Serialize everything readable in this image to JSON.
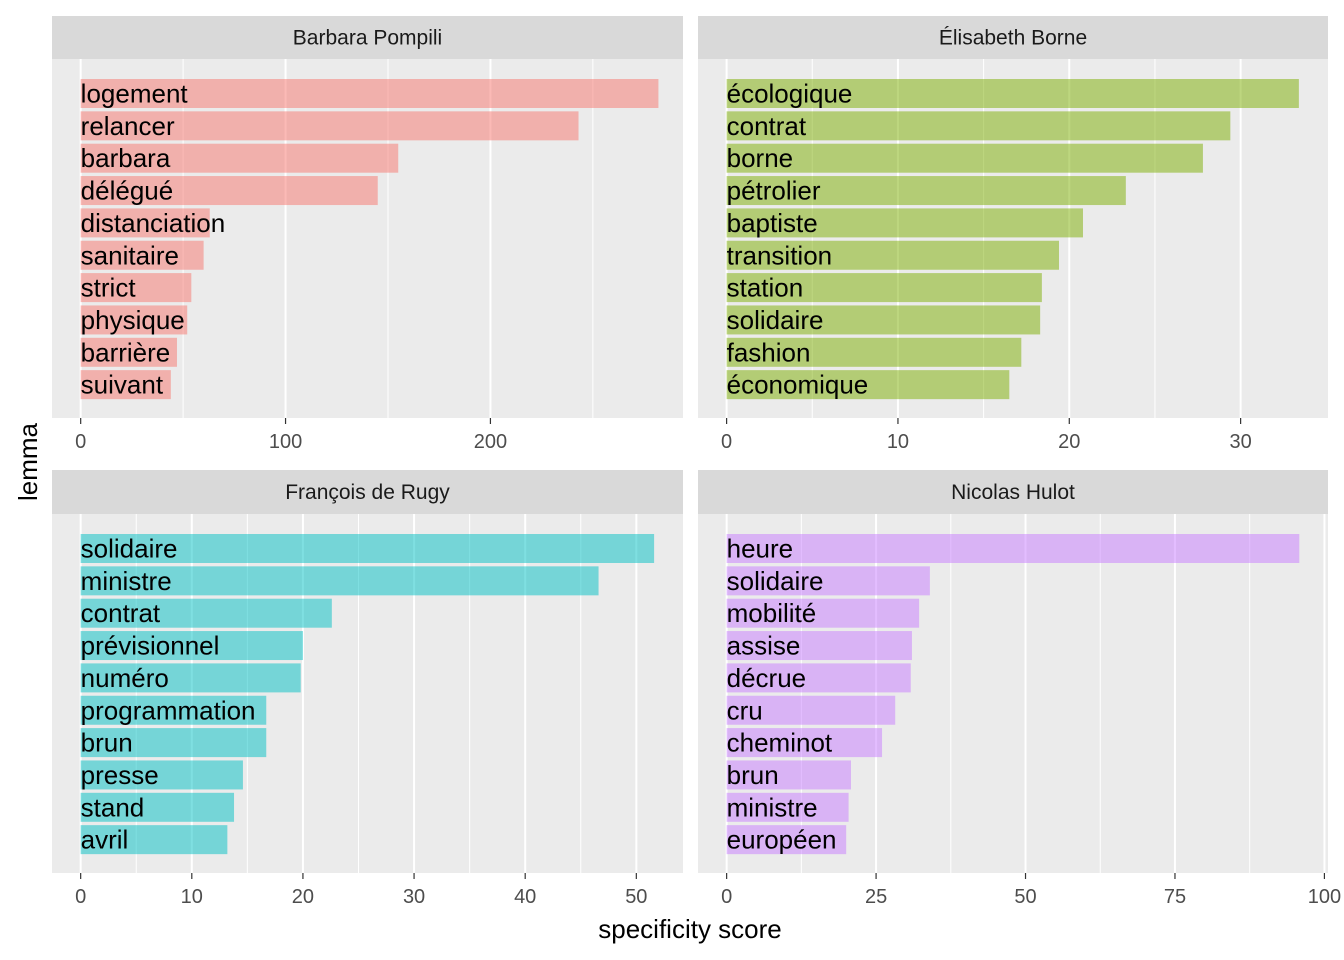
{
  "chart_data": {
    "type": "bar",
    "orientation": "horizontal",
    "xlabel": "specificity score",
    "ylabel": "lemma",
    "grid": true,
    "legend": "none",
    "panels": [
      {
        "name": "Barbara Pompili",
        "color": "#F8766D",
        "categories": [
          "logement",
          "relancer",
          "barbara",
          "délégué",
          "distanciation",
          "sanitaire",
          "strict",
          "physique",
          "barrière",
          "suivant"
        ],
        "values": [
          282,
          243,
          155,
          145,
          63,
          60,
          54,
          52,
          47,
          44
        ],
        "xlim": [
          -14,
          294
        ],
        "ticks": [
          0,
          100,
          200
        ],
        "minor_ticks": [
          50,
          150,
          250
        ]
      },
      {
        "name": "Élisabeth Borne",
        "color": "#7CAE00",
        "categories": [
          "écologique",
          "contrat",
          "borne",
          "pétrolier",
          "baptiste",
          "transition",
          "station",
          "solidaire",
          "fashion",
          "économique"
        ],
        "values": [
          33.4,
          29.4,
          27.8,
          23.3,
          20.8,
          19.4,
          18.4,
          18.3,
          17.2,
          16.5
        ],
        "xlim": [
          -1.67,
          35.1
        ],
        "ticks": [
          0,
          10,
          20,
          30
        ],
        "minor_ticks": [
          5,
          15,
          25
        ]
      },
      {
        "name": "François de Rugy",
        "color": "#00BFC4",
        "categories": [
          "solidaire",
          "ministre",
          "contrat",
          "prévisionnel",
          "numéro",
          "programmation",
          "brun",
          "presse",
          "stand",
          "avril"
        ],
        "values": [
          51.6,
          46.6,
          22.6,
          20,
          19.8,
          16.7,
          16.7,
          14.6,
          13.8,
          13.2
        ],
        "xlim": [
          -2.58,
          54.2
        ],
        "ticks": [
          0,
          10,
          20,
          30,
          40,
          50
        ],
        "minor_ticks": [
          5,
          15,
          25,
          35,
          45
        ]
      },
      {
        "name": "Nicolas Hulot",
        "color": "#C77CFF",
        "categories": [
          "heure",
          "solidaire",
          "mobilité",
          "assise",
          "décrue",
          "cru",
          "cheminot",
          "brun",
          "ministre",
          "européen"
        ],
        "values": [
          95.8,
          34,
          32.2,
          31,
          30.8,
          28.2,
          26,
          20.8,
          20.4,
          20
        ],
        "xlim": [
          -4.79,
          100.6
        ],
        "ticks": [
          0,
          25,
          50,
          75,
          100
        ],
        "minor_ticks": [
          12.5,
          37.5,
          62.5,
          87.5
        ]
      }
    ]
  }
}
